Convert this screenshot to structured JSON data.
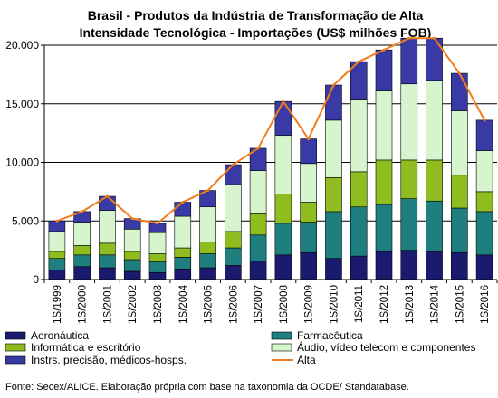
{
  "chart_data": {
    "type": "bar",
    "title_line1": "Brasil - Produtos da Indústria de Transformação de Alta",
    "title_line2": "Intensidade Tecnológica - Importações (US$ milhões FOB)",
    "xlabel": "",
    "ylabel": "",
    "ylim": [
      0,
      20000
    ],
    "yticks": [
      0,
      5000,
      10000,
      15000,
      20000
    ],
    "ytick_labels": [
      "0",
      "5.000",
      "10.000",
      "15.000",
      "20.000"
    ],
    "grid": true,
    "categories": [
      "1S/1999",
      "1S/2000",
      "1S/2001",
      "1S/2002",
      "1S/2003",
      "1S/2004",
      "1S/2005",
      "1S/2006",
      "1S/2007",
      "1S/2008",
      "1S/2009",
      "1S/2010",
      "1S/2011",
      "1S/2012",
      "1S/2013",
      "1S/2014",
      "1S/2015",
      "1S/2016"
    ],
    "series": [
      {
        "name": "Aeronáutica",
        "kind": "bar",
        "color": "#1a1a6e",
        "values": [
          800,
          1100,
          1000,
          700,
          600,
          900,
          1000,
          1200,
          1600,
          2100,
          2300,
          1800,
          2000,
          2400,
          2500,
          2400,
          2300,
          2100
        ]
      },
      {
        "name": "Farmacêutica",
        "kind": "bar",
        "color": "#1f7f7f",
        "values": [
          1000,
          1000,
          1100,
          1000,
          900,
          1000,
          1200,
          1500,
          2200,
          2700,
          2600,
          4000,
          4200,
          4000,
          4400,
          4300,
          3800,
          3700
        ]
      },
      {
        "name": "Informática e escritório",
        "kind": "bar",
        "color": "#8fbc1e",
        "values": [
          600,
          800,
          1000,
          700,
          700,
          800,
          1000,
          1400,
          1800,
          2500,
          1700,
          2900,
          3000,
          3800,
          3300,
          3500,
          2800,
          1700
        ]
      },
      {
        "name": "Áudio, vídeo telecom e componentes",
        "kind": "bar",
        "color": "#d6f5cc",
        "values": [
          1700,
          2000,
          2800,
          1900,
          1800,
          2700,
          3000,
          4000,
          3700,
          5000,
          3300,
          4900,
          6200,
          5900,
          6500,
          6800,
          5500,
          3500
        ]
      },
      {
        "name": "Instrs. precisão, médicos-hosps.",
        "kind": "bar",
        "color": "#3a3aa6",
        "values": [
          900,
          900,
          1200,
          900,
          800,
          1200,
          1400,
          1700,
          1900,
          2900,
          2100,
          3000,
          3200,
          3500,
          3900,
          3600,
          3200,
          2600
        ]
      },
      {
        "name": "Alta",
        "kind": "line",
        "color": "#f07c1c",
        "values": [
          5000,
          5800,
          7100,
          5200,
          4800,
          6600,
          7600,
          9800,
          11200,
          15200,
          12000,
          16600,
          18600,
          19600,
          20600,
          20600,
          17600,
          13600
        ]
      }
    ],
    "legend_position": "bottom"
  },
  "source_note": "Fonte: Secex/ALICE. Elaboração própria com base na taxonomia da OCDE/ Standatabase."
}
